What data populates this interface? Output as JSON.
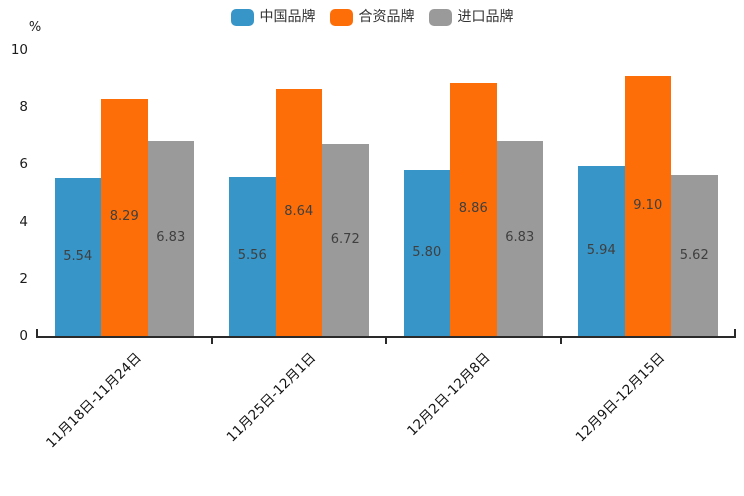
{
  "chart_data": {
    "type": "bar",
    "title": "",
    "xlabel": "",
    "ylabel": "%",
    "categories": [
      "11月18日-11月24日",
      "11月25日-12月1日",
      "12月2日-12月8日",
      "12月9日-12月15日"
    ],
    "series": [
      {
        "name": "中国品牌",
        "color": "#3795c8",
        "values": [
          5.54,
          5.56,
          5.8,
          5.94
        ]
      },
      {
        "name": "合资品牌",
        "color": "#fd6e08",
        "values": [
          8.29,
          8.64,
          8.86,
          9.1
        ]
      },
      {
        "name": "进口品牌",
        "color": "#9a9a9a",
        "values": [
          6.83,
          6.72,
          6.83,
          5.62
        ]
      }
    ],
    "value_labels": [
      [
        "5.54",
        "5.56",
        "5.80",
        "5.94"
      ],
      [
        "8.29",
        "8.64",
        "8.86",
        "9.10"
      ],
      [
        "6.83",
        "6.72",
        "6.83",
        "5.62"
      ]
    ],
    "ylim": [
      0,
      10
    ],
    "yticks": [
      0,
      2,
      4,
      6,
      8,
      10
    ],
    "legend_position": "top-center",
    "grid": false,
    "axis_color": "#2a2a2a",
    "background_color": "#ffffff"
  }
}
